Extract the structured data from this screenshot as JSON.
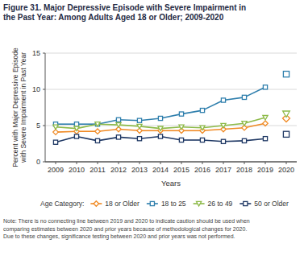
{
  "chart_data": {
    "type": "line",
    "title": [
      "Figure 31. Major Depressive Episode with Severe Impairment in",
      "the Past Year: Among Adults Aged 18 or Older; 2009-2020"
    ],
    "y_label": [
      "Percent with Major Depressive Episode",
      "with Severe Impairment in Past Year"
    ],
    "x_label": "Years",
    "legend_title": "Age Category:",
    "note": [
      "Note: There is no connecting line between 2019 and 2020 to indicate caution should be used when",
      "comparing estimates between 2020 and prior years because of methodological changes for 2020.",
      "Due to these changes, significance testing between 2020 and prior years was not performed."
    ],
    "categories": [
      "2009",
      "2010",
      "2011",
      "2012",
      "2013",
      "2014",
      "2015",
      "2016",
      "2017",
      "2018",
      "2019",
      "2020"
    ],
    "series": [
      {
        "name": "18 or Older",
        "color": "#f08a24",
        "marker": "diamond",
        "values": [
          4.1,
          4.2,
          4.2,
          4.5,
          4.3,
          4.3,
          4.3,
          4.3,
          4.5,
          4.7,
          5.3,
          6.0
        ]
      },
      {
        "name": "18 to 25",
        "color": "#2f7fad",
        "marker": "square",
        "values": [
          5.2,
          5.2,
          5.2,
          5.8,
          5.7,
          6.0,
          6.6,
          7.1,
          8.5,
          8.9,
          10.3,
          12.1
        ]
      },
      {
        "name": "26 to 49",
        "color": "#8dba48",
        "marker": "triangle-down",
        "values": [
          4.8,
          4.6,
          5.2,
          5.1,
          4.9,
          4.6,
          4.8,
          4.7,
          5.0,
          5.3,
          6.1,
          6.6
        ]
      },
      {
        "name": "50 or Older",
        "color": "#1f3864",
        "marker": "square",
        "values": [
          2.7,
          3.5,
          2.9,
          3.4,
          3.2,
          3.5,
          3.0,
          3.0,
          2.8,
          2.9,
          3.2,
          3.8
        ]
      }
    ],
    "ylim": [
      0,
      15
    ],
    "yticks": [
      0,
      5,
      10,
      15
    ],
    "grid": true,
    "legend": "bottom"
  }
}
